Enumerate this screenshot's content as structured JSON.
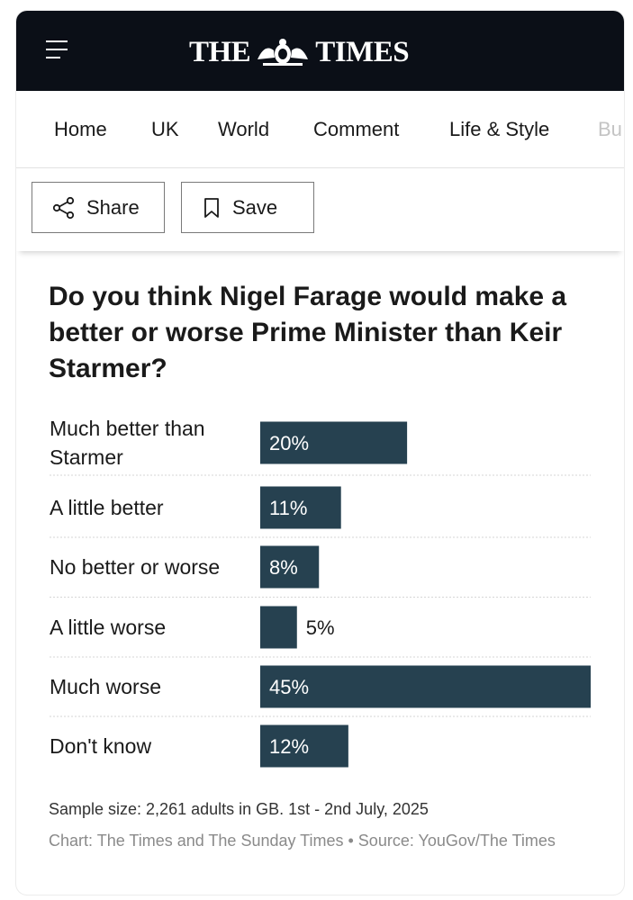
{
  "masthead": {
    "logo_left": "THE",
    "logo_right": "TIMES",
    "colors": {
      "background": "#0b0f17",
      "text": "#ffffff"
    },
    "icons": {
      "menu": "hamburger-icon",
      "crest": "crest-icon"
    }
  },
  "nav": {
    "items": [
      "Home",
      "UK",
      "World",
      "Comment",
      "Life & Style",
      "Bu"
    ]
  },
  "actions": {
    "share_label": "Share",
    "save_label": "Save",
    "icons": {
      "share": "share-icon",
      "save": "bookmark-icon"
    }
  },
  "chart_data": {
    "type": "bar",
    "orientation": "horizontal",
    "title": "Do you think Nigel Farage would make a better or worse Prime Minister than Keir Starmer?",
    "categories": [
      [
        "Much better than",
        "Starmer"
      ],
      [
        "A little better"
      ],
      [
        "No better or worse"
      ],
      [
        "A little worse"
      ],
      [
        "Much worse"
      ],
      [
        "Don't know"
      ]
    ],
    "values": [
      20,
      11,
      8,
      5,
      45,
      12
    ],
    "value_labels": [
      "20%",
      "11%",
      "8%",
      "5%",
      "45%",
      "12%"
    ],
    "xlim": [
      0,
      45
    ],
    "unit": "%",
    "bar_color": "#264150",
    "grid": false
  },
  "footer": {
    "sample": "Sample size: 2,261 adults in GB. 1st - 2nd July, 2025",
    "source": "Chart: The Times and The Sunday Times • Source: YouGov/The Times"
  }
}
